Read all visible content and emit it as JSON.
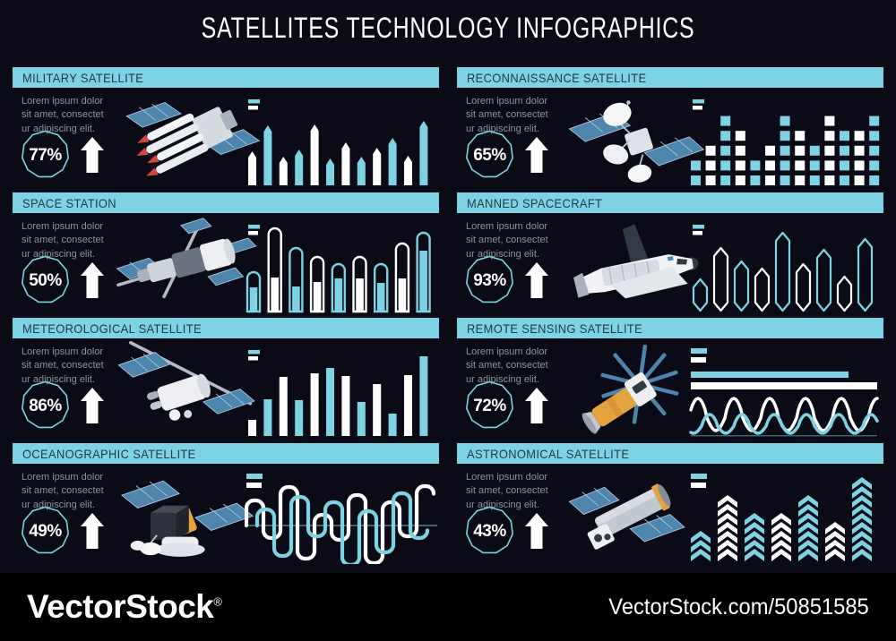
{
  "title": "SATELLITES TECHNOLOGY INFOGRAPHICS",
  "lorem": {
    "line1": "Lorem ipsum dolor",
    "line2": "sit amet, consectet",
    "line3": "ur adipiscing elit."
  },
  "colors": {
    "background": "#0a0b16",
    "accent_cyan": "#7dd2e3",
    "white": "#ffffff",
    "header_text": "#1e3a45",
    "body_text": "#8e939c",
    "solar_blue": "#4d85ac",
    "footer_bg": "#000000"
  },
  "panels": [
    {
      "title": "MILITARY SATELLITE",
      "percent": "77%",
      "trend": "up"
    },
    {
      "title": "RECONNAISSANCE SATELLITE",
      "percent": "65%",
      "trend": "up"
    },
    {
      "title": "SPACE STATION",
      "percent": "50%",
      "trend": "up"
    },
    {
      "title": "MANNED SPACECRAFT",
      "percent": "93%",
      "trend": "up"
    },
    {
      "title": "METEOROLOGICAL SATELLITE",
      "percent": "86%",
      "trend": "up"
    },
    {
      "title": "REMOTE SENSING SATELLITE",
      "percent": "72%",
      "trend": "up"
    },
    {
      "title": "OCEANOGRAPHIC SATELLITE",
      "percent": "49%",
      "trend": "up"
    },
    {
      "title": "ASTRONOMICAL SATELLITE",
      "percent": "43%",
      "trend": "up"
    }
  ],
  "chart_data": [
    {
      "panel": "MILITARY SATELLITE",
      "type": "bar",
      "variant": "pointed",
      "values": [
        38,
        67,
        32,
        40,
        68,
        30,
        48,
        32,
        42,
        53,
        33,
        72
      ],
      "first_color": "white",
      "legend": [
        "cyan",
        "white"
      ],
      "units": "relative-height-px"
    },
    {
      "panel": "RECONNAISSANCE SATELLITE",
      "type": "heatmap",
      "variant": "square-columns",
      "column_heights": [
        2,
        3,
        5,
        4,
        2,
        3,
        5,
        4,
        3,
        5,
        4,
        4,
        5
      ],
      "first_color": "cyan",
      "legend": [
        "cyan",
        "white"
      ],
      "units": "squares"
    },
    {
      "panel": "SPACE STATION",
      "type": "bar",
      "variant": "capsule-outline",
      "values": [
        43,
        92,
        70,
        60,
        52,
        60,
        52,
        75,
        87
      ],
      "fill_values": [
        27,
        38,
        28,
        33,
        37,
        37,
        32,
        37,
        68
      ],
      "first_color": "cyan",
      "legend": [
        "cyan",
        "white"
      ],
      "units": "relative-height-px"
    },
    {
      "panel": "MANNED SPACECRAFT",
      "type": "bar",
      "variant": "hexagon-outline",
      "values": [
        35,
        70,
        55,
        47,
        87,
        52,
        68,
        38,
        80
      ],
      "first_color": "cyan",
      "legend": [
        "cyan",
        "white"
      ],
      "units": "relative-height-px"
    },
    {
      "panel": "METEOROLOGICAL SATELLITE",
      "type": "bar",
      "variant": "flat",
      "values": [
        18,
        41,
        66,
        40,
        70,
        76,
        67,
        38,
        58,
        25,
        68,
        89
      ],
      "first_color": "white",
      "legend": [
        "cyan",
        "white"
      ],
      "units": "relative-height-px"
    },
    {
      "panel": "REMOTE SENSING SATELLITE",
      "type": "line",
      "variant": "hbars-waves",
      "hbar_values": [
        {
          "length": 176,
          "color": "cyan"
        },
        {
          "length": 208,
          "color": "white"
        }
      ],
      "waves": [
        {
          "color": "white",
          "period": 40,
          "amp_up": 22,
          "amp_down": 14,
          "baseline": 78,
          "phase": 0
        },
        {
          "color": "cyan",
          "period": 36,
          "amp_up": 13,
          "amp_down": 8,
          "baseline": 87,
          "phase": 14
        }
      ],
      "baseline_y": 97,
      "legend": [
        "cyan",
        "white"
      ]
    },
    {
      "panel": "OCEANOGRAPHIC SATELLITE",
      "type": "line",
      "variant": "meander",
      "axis_y": 58,
      "series": [
        {
          "color": "white",
          "x0": 2,
          "amplitudes": [
            28,
            -14,
            43,
            -37,
            12,
            -16,
            34,
            -42,
            26,
            -12,
            44
          ]
        },
        {
          "color": "cyan",
          "x0": 14,
          "amplitudes": [
            18,
            -34,
            32,
            -12,
            26,
            -44,
            16,
            -30,
            36,
            -14
          ]
        }
      ],
      "legend": [
        "cyan",
        "white"
      ]
    },
    {
      "panel": "ASTRONOMICAL SATELLITE",
      "type": "bar",
      "variant": "chevron-stack",
      "values": [
        3,
        7,
        5,
        5,
        7,
        4,
        9
      ],
      "first_color": "cyan",
      "legend": [
        "cyan",
        "white"
      ],
      "units": "chevrons"
    }
  ],
  "footer": {
    "brand": "VectorStock",
    "registered_mark": "®",
    "url": "VectorStock.com/50851585"
  }
}
